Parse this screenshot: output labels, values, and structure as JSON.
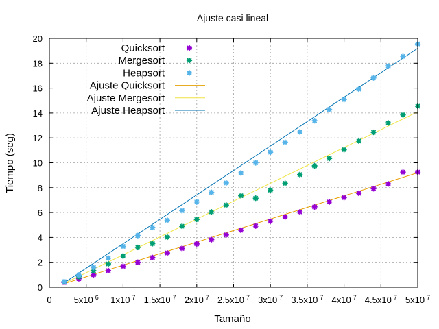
{
  "chart_data": {
    "type": "scatter",
    "title": "Ajuste casi lineal",
    "xlabel": "Tamaño",
    "ylabel": "Tiempo (seg)",
    "xlim": [
      0,
      50000000
    ],
    "ylim": [
      0,
      20
    ],
    "grid": true,
    "legend_position": "top-left",
    "x_ticks": [
      {
        "value": 0,
        "mantissa": "0",
        "exp": ""
      },
      {
        "value": 5000000,
        "mantissa": "5x10",
        "exp": "6"
      },
      {
        "value": 10000000,
        "mantissa": "1x10",
        "exp": "7"
      },
      {
        "value": 15000000,
        "mantissa": "1.5x10",
        "exp": "7"
      },
      {
        "value": 20000000,
        "mantissa": "2x10",
        "exp": "7"
      },
      {
        "value": 25000000,
        "mantissa": "2.5x10",
        "exp": "7"
      },
      {
        "value": 30000000,
        "mantissa": "3x10",
        "exp": "7"
      },
      {
        "value": 35000000,
        "mantissa": "3.5x10",
        "exp": "7"
      },
      {
        "value": 40000000,
        "mantissa": "4x10",
        "exp": "7"
      },
      {
        "value": 45000000,
        "mantissa": "4.5x10",
        "exp": "7"
      },
      {
        "value": 50000000,
        "mantissa": "5x10",
        "exp": "7"
      }
    ],
    "y_ticks": [
      0,
      2,
      4,
      6,
      8,
      10,
      12,
      14,
      16,
      18,
      20
    ],
    "x": [
      2000000,
      4000000,
      6000000,
      8000000,
      10000000,
      12000000,
      14000000,
      16000000,
      18000000,
      20000000,
      22000000,
      24000000,
      26000000,
      28000000,
      30000000,
      32000000,
      34000000,
      36000000,
      38000000,
      40000000,
      42000000,
      44000000,
      46000000,
      48000000,
      50000000
    ],
    "series": [
      {
        "name": "Quicksort",
        "kind": "points",
        "color": "#9400d3",
        "values": [
          0.38,
          0.68,
          1.0,
          1.33,
          1.68,
          2.0,
          2.38,
          2.75,
          3.12,
          3.48,
          3.82,
          4.2,
          4.58,
          4.92,
          5.3,
          5.65,
          6.05,
          6.45,
          6.85,
          7.2,
          7.55,
          7.92,
          8.3,
          9.25,
          9.25
        ]
      },
      {
        "name": "Mergesort",
        "kind": "points",
        "color": "#009e73",
        "values": [
          0.42,
          0.85,
          1.32,
          1.87,
          2.5,
          3.2,
          3.5,
          4.02,
          4.9,
          5.45,
          6.05,
          6.6,
          7.35,
          7.15,
          7.8,
          8.35,
          9.05,
          9.75,
          10.35,
          11.05,
          11.75,
          12.45,
          13.2,
          13.85,
          14.55
        ]
      },
      {
        "name": "Heapsort",
        "kind": "points",
        "color": "#56b4e9",
        "values": [
          0.45,
          0.98,
          1.58,
          2.33,
          3.28,
          4.15,
          4.8,
          5.38,
          6.15,
          6.85,
          7.62,
          8.38,
          9.18,
          10.0,
          10.85,
          11.65,
          12.48,
          13.38,
          14.28,
          15.08,
          15.92,
          16.82,
          17.78,
          18.55,
          19.55
        ]
      },
      {
        "name": "Ajuste Quicksort",
        "kind": "line",
        "color": "#e69f00",
        "x": [
          2000000,
          50000000
        ],
        "values": [
          0.28,
          9.2
        ]
      },
      {
        "name": "Ajuste Mergesort",
        "kind": "line",
        "color": "#f0e442",
        "x": [
          2000000,
          50000000
        ],
        "values": [
          0.3,
          14.1
        ]
      },
      {
        "name": "Ajuste Heapsort",
        "kind": "line",
        "color": "#0072b2",
        "x": [
          2000000,
          50000000
        ],
        "values": [
          0.35,
          19.2
        ]
      }
    ]
  }
}
